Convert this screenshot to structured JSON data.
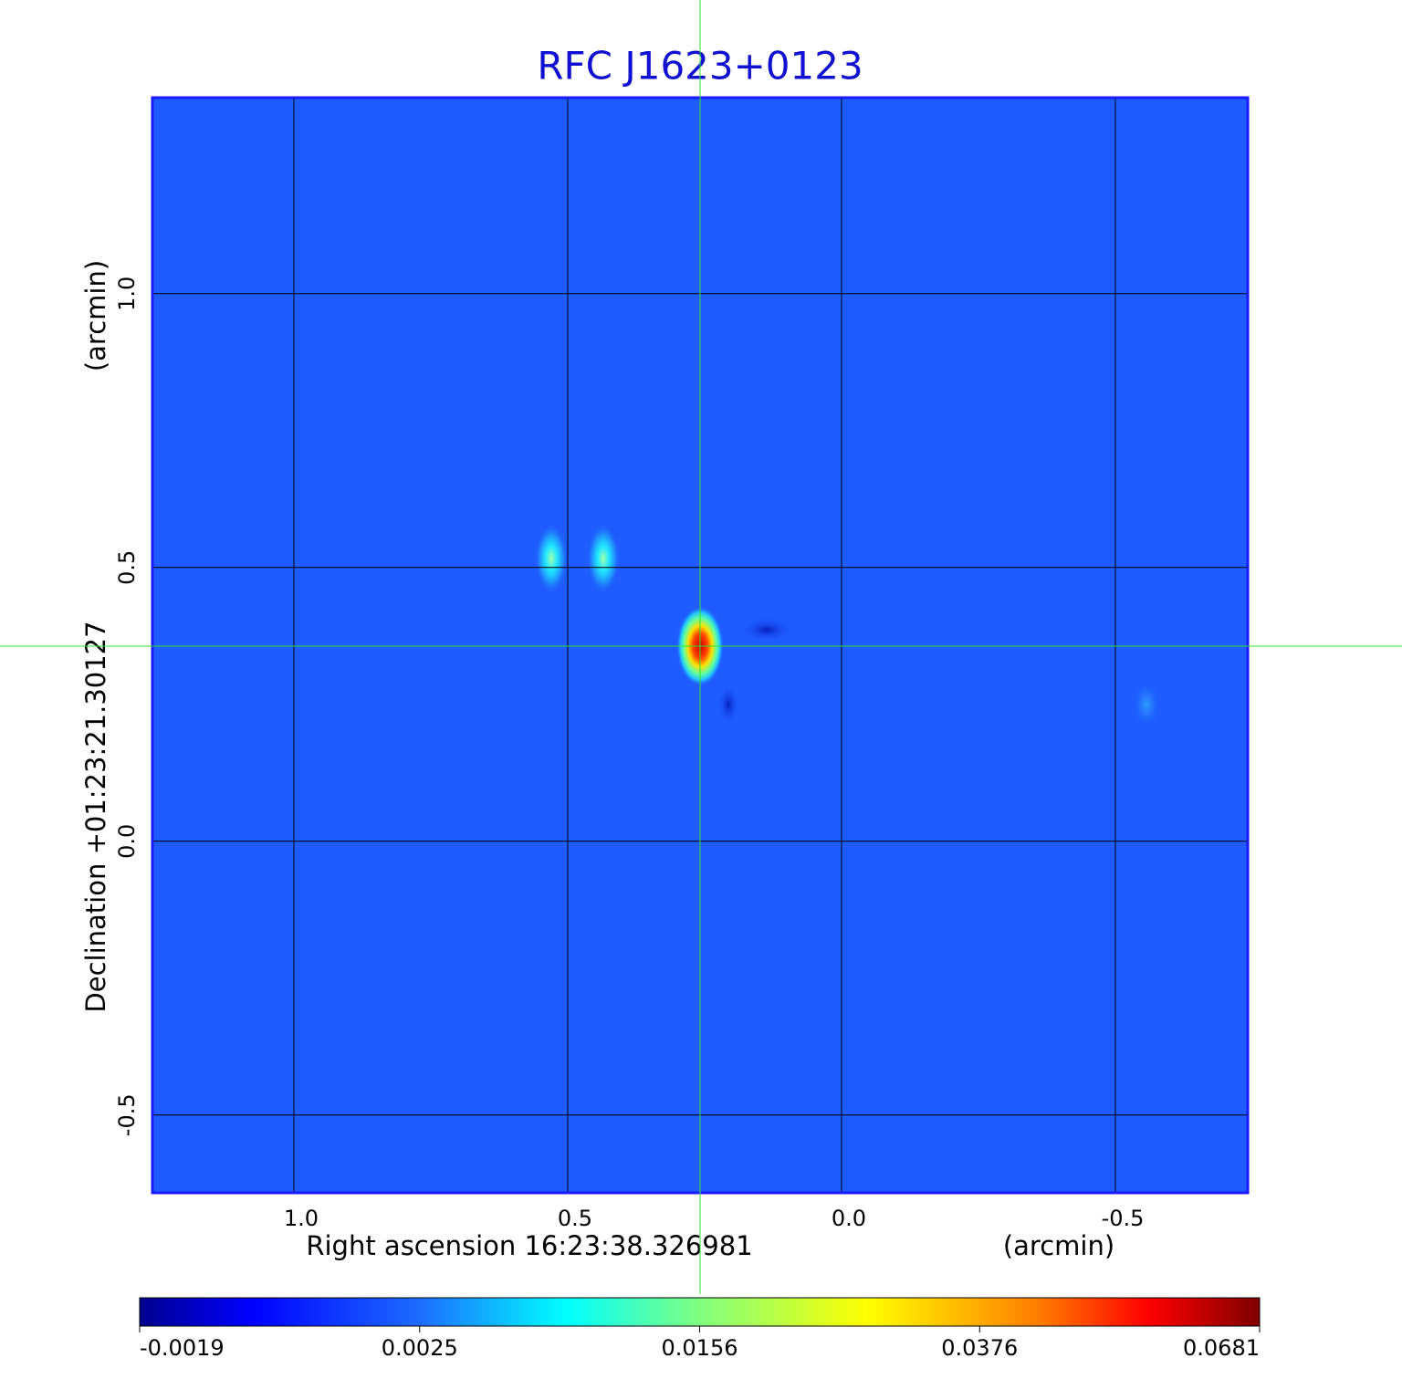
{
  "chart_data": {
    "type": "image",
    "title": "RFC J1623+0123",
    "x_label": "Right ascension  16:23:38.326981",
    "x_unit": "(arcmin)",
    "y_label": "Declination  +01:23:21.30127",
    "y_unit": "(arcmin)",
    "xlim": [
      1.2583,
      -0.7417
    ],
    "ylim": [
      -0.642,
      1.358
    ],
    "xticks": [
      {
        "value": 1,
        "label": "1.0"
      },
      0.5,
      {
        "value": 0,
        "label": "0.0"
      },
      -0.5
    ],
    "yticks": [
      -0.5,
      {
        "value": 0,
        "label": "0.0"
      },
      0.5,
      {
        "value": 1,
        "label": "1.0"
      }
    ],
    "grid": true,
    "colorbar_ticks": [
      -0.0019,
      0.0025,
      0.0156,
      0.0376,
      0.0681
    ]
  }
}
